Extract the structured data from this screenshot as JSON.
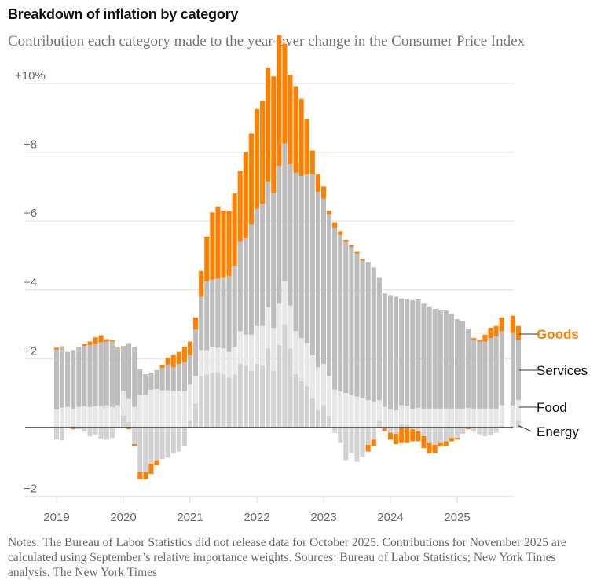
{
  "header": {
    "title": "Breakdown of inflation by category",
    "subtitle": "Contribution each category made to the year-over change in the Consumer Price Index"
  },
  "notes": "Notes: The Bureau of Labor Statistics did not release data for October 2025. Contributions for November 2025 are calculated using September’s relative importance weights.  Sources: Bureau of Labor Statistics; New York Times analysis. The New York Times",
  "colors": {
    "goods": "#fd8000",
    "services": "#bdbdbd",
    "food": "#e7e7e7",
    "energy": "#d2d2d2",
    "gridline": "#e8e8e8",
    "zeroline": "#333333"
  },
  "chart_data": {
    "type": "bar",
    "stacked": true,
    "title": "Breakdown of inflation by category",
    "subtitle": "Contribution each category made to the year-over change in the Consumer Price Index",
    "xlabel": "",
    "ylabel": "",
    "ylim": [
      -2,
      10
    ],
    "yticks": [
      {
        "value": 10,
        "label": "+10%"
      },
      {
        "value": 8,
        "label": "+8"
      },
      {
        "value": 6,
        "label": "+6"
      },
      {
        "value": 4,
        "label": "+4"
      },
      {
        "value": 2,
        "label": "+2"
      },
      {
        "value": -2,
        "label": "−2"
      }
    ],
    "xticks": [
      "2019",
      "2020",
      "2021",
      "2022",
      "2023",
      "2024",
      "2025"
    ],
    "grid": true,
    "legend": "right-end-labels",
    "legend_labels": [
      "Goods",
      "Services",
      "Food",
      "Energy"
    ],
    "start": "2019-01",
    "missing_months": [
      "2025-10"
    ],
    "series": [
      {
        "name": "Energy",
        "values": [
          -0.35,
          -0.37,
          0.0,
          0.05,
          -0.05,
          -0.12,
          -0.25,
          -0.2,
          -0.32,
          -0.35,
          -0.3,
          0.0,
          0.35,
          0.15,
          -0.48,
          -1.3,
          -1.3,
          -1.05,
          -0.95,
          -0.92,
          -0.88,
          -0.75,
          -0.7,
          -0.55,
          0.2,
          0.7,
          1.5,
          1.55,
          1.6,
          1.6,
          1.55,
          1.45,
          1.55,
          1.85,
          1.8,
          1.65,
          1.85,
          1.8,
          2.3,
          1.65,
          2.4,
          3.0,
          2.3,
          1.55,
          1.35,
          1.2,
          0.85,
          0.5,
          0.65,
          0.35,
          -0.15,
          -0.45,
          -0.95,
          -0.75,
          -1.0,
          -0.85,
          -0.5,
          -0.35,
          0.2,
          0.0,
          -0.15,
          -0.18,
          0.1,
          0.08,
          -0.05,
          -0.1,
          -0.25,
          -0.45,
          -0.5,
          -0.45,
          -0.4,
          -0.3,
          -0.3,
          -0.18,
          0.02,
          -0.12,
          -0.2,
          -0.25,
          -0.22,
          -0.15,
          0.05,
          0.05,
          0.2
        ]
      },
      {
        "name": "Food",
        "values": [
          0.52,
          0.58,
          0.6,
          0.5,
          0.6,
          0.62,
          0.6,
          0.62,
          0.63,
          0.65,
          0.6,
          0.65,
          0.72,
          0.68,
          0.6,
          0.95,
          0.95,
          1.1,
          1.12,
          1.08,
          1.08,
          1.05,
          1.05,
          1.05,
          1.05,
          0.8,
          0.75,
          0.7,
          0.75,
          0.72,
          0.75,
          0.75,
          0.8,
          0.95,
          0.9,
          1.05,
          1.1,
          1.15,
          1.2,
          1.25,
          1.2,
          1.25,
          1.25,
          1.25,
          1.25,
          1.25,
          1.25,
          1.25,
          1.2,
          1.15,
          1.1,
          1.05,
          1.0,
          0.95,
          0.9,
          0.85,
          0.8,
          0.75,
          0.6,
          0.6,
          0.55,
          0.5,
          0.55,
          0.55,
          0.55,
          0.57,
          0.55,
          0.55,
          0.55,
          0.55,
          0.55,
          0.55,
          0.55,
          0.55,
          0.55,
          0.55,
          0.55,
          0.55,
          0.55,
          0.55,
          0.6,
          0.6,
          0.6
        ]
      },
      {
        "name": "Services",
        "values": [
          1.75,
          1.75,
          1.6,
          1.7,
          1.75,
          1.75,
          1.8,
          1.8,
          1.85,
          1.85,
          1.9,
          1.65,
          1.3,
          1.6,
          1.75,
          0.75,
          0.6,
          0.5,
          0.55,
          0.65,
          0.75,
          0.7,
          0.8,
          0.85,
          0.85,
          1.35,
          1.55,
          2.0,
          1.95,
          2.0,
          2.05,
          2.2,
          2.35,
          2.6,
          2.8,
          3.2,
          3.4,
          3.55,
          3.65,
          3.9,
          4.0,
          4.0,
          4.1,
          4.6,
          4.7,
          4.9,
          5.25,
          5.1,
          4.8,
          4.7,
          4.7,
          4.55,
          4.4,
          4.3,
          4.15,
          4.0,
          4.0,
          3.9,
          3.55,
          3.3,
          3.3,
          3.3,
          3.1,
          3.1,
          3.15,
          3.15,
          3.05,
          2.97,
          2.9,
          2.85,
          2.85,
          2.75,
          2.6,
          2.55,
          2.3,
          2.0,
          1.95,
          1.95,
          2.05,
          2.1,
          2.15,
          2.1,
          1.75
        ]
      },
      {
        "name": "Goods",
        "values": [
          0.05,
          0.03,
          0.0,
          -0.05,
          0.0,
          0.05,
          0.1,
          0.2,
          0.2,
          0.07,
          0.05,
          0.02,
          0.0,
          -0.05,
          -0.05,
          -0.2,
          -0.2,
          -0.3,
          -0.15,
          0.1,
          0.2,
          0.35,
          0.35,
          0.45,
          0.4,
          0.35,
          0.75,
          1.3,
          1.95,
          2.1,
          1.95,
          1.9,
          2.1,
          2.05,
          2.5,
          2.65,
          2.9,
          3.0,
          3.3,
          3.4,
          3.8,
          2.9,
          2.6,
          2.5,
          2.25,
          1.6,
          0.7,
          0.5,
          0.35,
          0.1,
          0.15,
          0.1,
          0.05,
          0.05,
          0.05,
          0.05,
          -0.2,
          -0.2,
          0.0,
          -0.1,
          -0.2,
          -0.3,
          -0.45,
          -0.45,
          -0.35,
          -0.3,
          -0.35,
          -0.3,
          -0.25,
          -0.1,
          -0.15,
          -0.1,
          -0.05,
          0.0,
          -0.05,
          0.05,
          0.05,
          0.2,
          0.3,
          0.3,
          0.4,
          0.5,
          0.4
        ]
      }
    ]
  }
}
